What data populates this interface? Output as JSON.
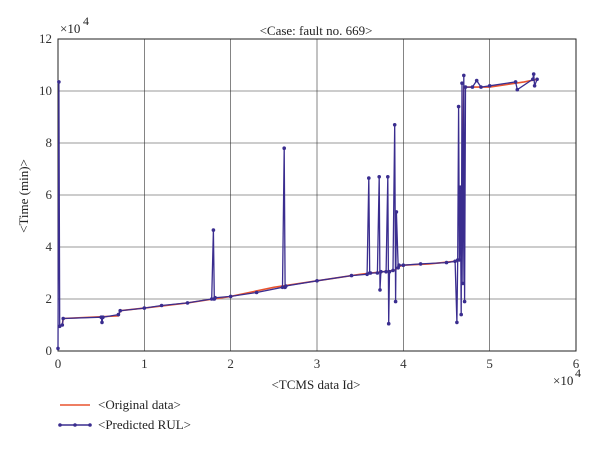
{
  "chart_data": {
    "type": "line",
    "title": "<Case: fault no. 669>",
    "xlabel": "<TCMS data Id>",
    "ylabel": "<Time (min)>",
    "x_multiplier_label": "×10",
    "x_multiplier_exp": "4",
    "y_multiplier_label": "×10",
    "y_multiplier_exp": "4",
    "xlim": [
      0,
      6
    ],
    "ylim": [
      0,
      12
    ],
    "xticks": [
      0,
      1,
      2,
      3,
      4,
      5,
      6
    ],
    "yticks": [
      0,
      2,
      4,
      6,
      8,
      10,
      12
    ],
    "xtick_labels": [
      "0",
      "1",
      "2",
      "3",
      "4",
      "5",
      "6"
    ],
    "ytick_labels": [
      "0",
      "2",
      "4",
      "6",
      "8",
      "10",
      "12"
    ],
    "grid": true,
    "legend_position": "below-left",
    "series": [
      {
        "name": "<Original data>",
        "color": "#e8542f",
        "marker": "none",
        "x": [
          0,
          0.05,
          0.06,
          0.7,
          0.72,
          1.0,
          1.5,
          1.8,
          2.0,
          2.5,
          3.0,
          3.5,
          3.9,
          3.95,
          4.0,
          4.3,
          4.6,
          4.67,
          4.7,
          5.0,
          5.4,
          5.55
        ],
        "y": [
          0.9,
          1.0,
          1.25,
          1.35,
          1.55,
          1.65,
          1.85,
          2.0,
          2.1,
          2.45,
          2.7,
          2.95,
          3.1,
          3.25,
          3.3,
          3.35,
          3.45,
          3.5,
          10.15,
          10.15,
          10.35,
          10.45
        ]
      },
      {
        "name": "<Predicted RUL>",
        "color": "#3a2d8f",
        "marker": "dot",
        "x": [
          0,
          0.01,
          0.02,
          0.05,
          0.06,
          0.5,
          0.51,
          0.52,
          0.7,
          0.72,
          1.0,
          1.2,
          1.5,
          1.78,
          1.8,
          1.81,
          1.82,
          2.0,
          2.3,
          2.6,
          2.62,
          2.63,
          2.64,
          3.0,
          3.4,
          3.58,
          3.6,
          3.61,
          3.62,
          3.7,
          3.72,
          3.73,
          3.74,
          3.8,
          3.82,
          3.83,
          3.84,
          3.88,
          3.9,
          3.91,
          3.92,
          3.94,
          3.95,
          4.0,
          4.2,
          4.5,
          4.6,
          4.62,
          4.63,
          4.64,
          4.65,
          4.66,
          4.67,
          4.68,
          4.69,
          4.7,
          4.71,
          4.72,
          4.8,
          4.85,
          4.9,
          5.0,
          5.3,
          5.32,
          5.5,
          5.51,
          5.52,
          5.55
        ],
        "y": [
          0.1,
          10.35,
          0.95,
          1.0,
          1.25,
          1.3,
          1.1,
          1.3,
          1.4,
          1.55,
          1.65,
          1.75,
          1.85,
          2.0,
          4.65,
          2.0,
          2.05,
          2.1,
          2.25,
          2.45,
          7.8,
          2.45,
          2.5,
          2.7,
          2.9,
          2.95,
          6.65,
          3.0,
          3.0,
          3.0,
          6.7,
          2.35,
          3.05,
          3.05,
          6.7,
          1.05,
          3.05,
          3.1,
          8.7,
          1.9,
          5.35,
          3.2,
          3.3,
          3.3,
          3.35,
          3.4,
          3.45,
          1.1,
          3.5,
          9.4,
          3.5,
          6.3,
          1.4,
          10.3,
          2.6,
          10.6,
          1.9,
          10.15,
          10.15,
          10.4,
          10.15,
          10.2,
          10.35,
          10.05,
          10.45,
          10.65,
          10.2,
          10.45
        ]
      }
    ]
  }
}
